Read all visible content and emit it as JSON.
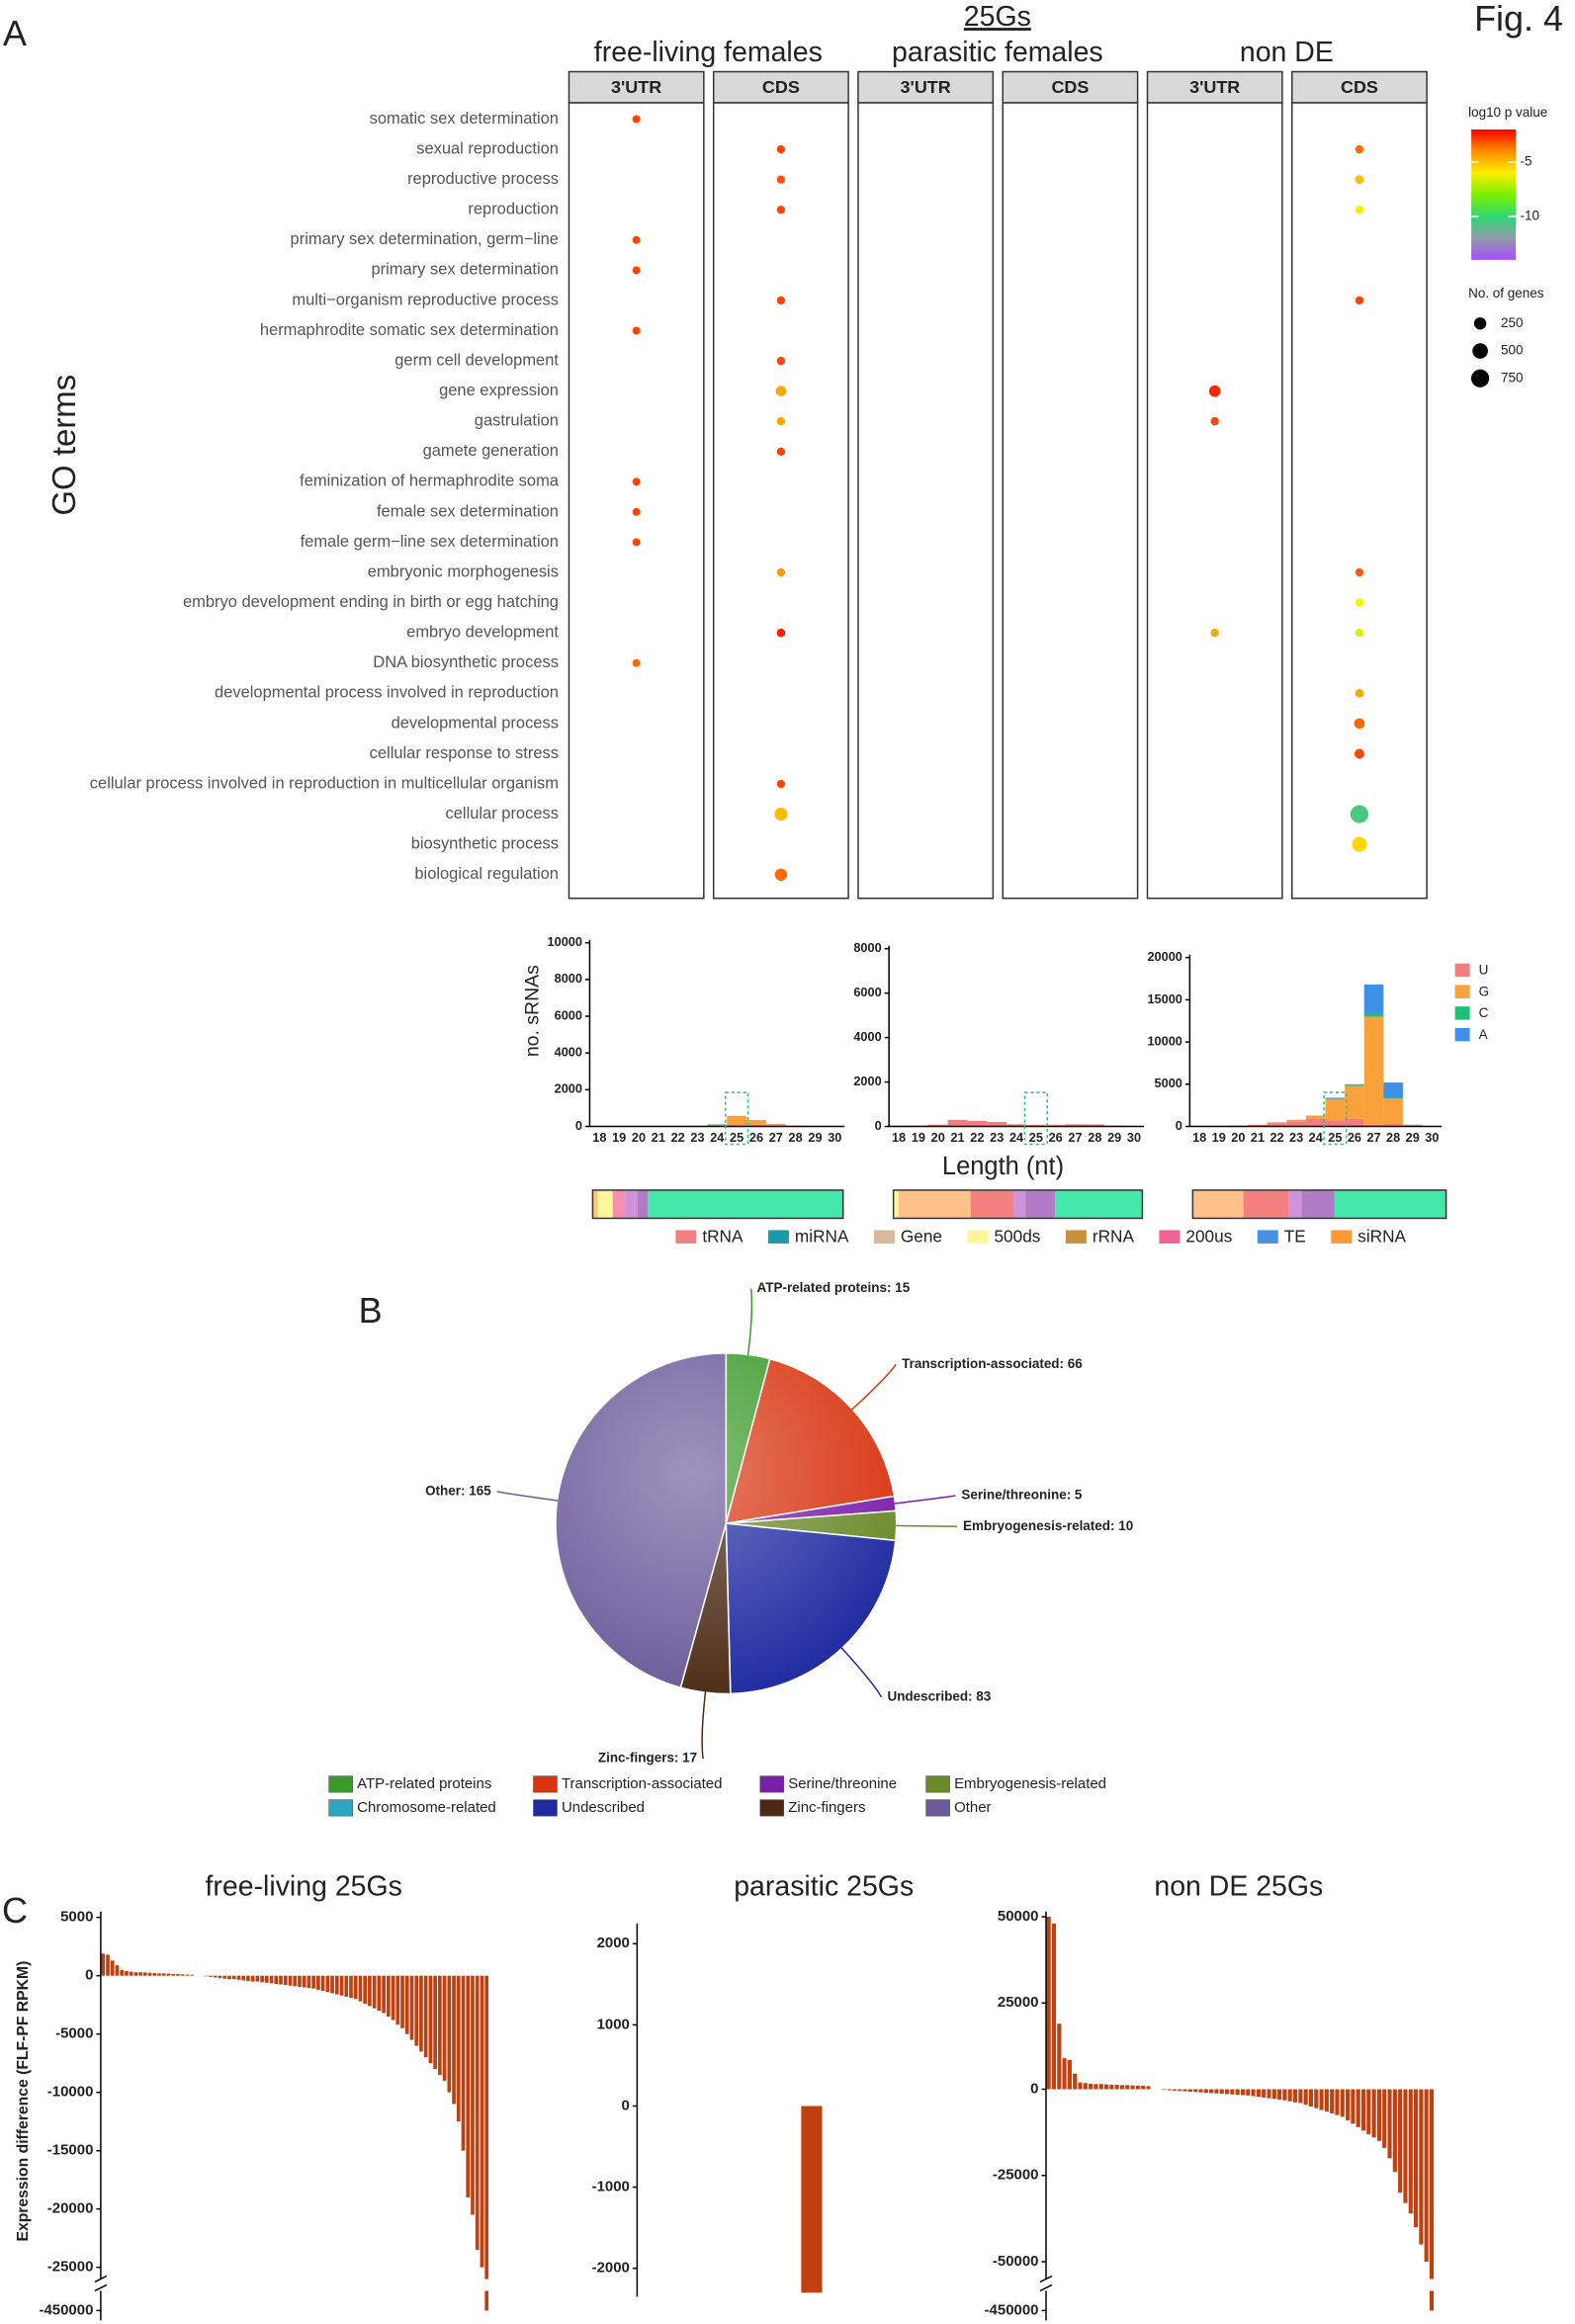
{
  "figure_label": "Fig. 4",
  "panel_labels": [
    "A",
    "B",
    "C"
  ],
  "chart_data": [
    {
      "type": "dot",
      "y_label": "GO terms",
      "group_title": "25Gs",
      "groups": [
        "free-living females",
        "parasitic females",
        "non DE"
      ],
      "facets": [
        "3'UTR",
        "CDS",
        "3'UTR",
        "CDS",
        "3'UTR",
        "CDS"
      ],
      "terms": [
        "somatic sex determination",
        "sexual reproduction",
        "reproductive process",
        "reproduction",
        "primary sex determination, germ−line",
        "primary sex determination",
        "multi−organism reproductive process",
        "hermaphrodite somatic sex determination",
        "germ cell development",
        "gene expression",
        "gastrulation",
        "gamete generation",
        "feminization of hermaphrodite soma",
        "female sex determination",
        "female germ−line sex determination",
        "embryonic morphogenesis",
        "embryo development ending in birth or egg hatching",
        "embryo development",
        "DNA biosynthetic process",
        "developmental process involved in reproduction",
        "developmental process",
        "cellular response to stress",
        "cellular process involved in reproduction in multicellular organism",
        "cellular process",
        "biosynthetic process",
        "biological regulation"
      ],
      "log10p": [
        [
          -3,
          null,
          null,
          null,
          -3,
          -3,
          null,
          -3,
          null,
          null,
          null,
          null,
          -3,
          -3,
          -3,
          null,
          null,
          null,
          -3.5,
          null,
          null,
          null,
          null,
          null,
          null,
          null
        ],
        [
          null,
          -3,
          -3.2,
          -3,
          null,
          null,
          -3,
          null,
          -3,
          -4.5,
          -4.5,
          -3,
          null,
          null,
          null,
          -4.3,
          null,
          -2.5,
          null,
          null,
          null,
          null,
          -3,
          -5,
          null,
          -3.5
        ],
        [
          null,
          null,
          null,
          null,
          null,
          null,
          null,
          null,
          null,
          null,
          null,
          null,
          null,
          null,
          null,
          null,
          null,
          null,
          null,
          null,
          null,
          null,
          null,
          null,
          null,
          null
        ],
        [
          null,
          null,
          null,
          null,
          null,
          null,
          null,
          null,
          null,
          null,
          null,
          null,
          null,
          null,
          null,
          null,
          null,
          null,
          null,
          null,
          null,
          null,
          null,
          null,
          null,
          null
        ],
        [
          null,
          null,
          null,
          null,
          null,
          null,
          null,
          null,
          null,
          -2.5,
          -3,
          null,
          null,
          null,
          null,
          null,
          null,
          -4.5,
          null,
          null,
          null,
          null,
          null,
          null,
          null,
          null
        ],
        [
          null,
          -3.5,
          -5,
          -6,
          null,
          null,
          -3,
          null,
          null,
          null,
          null,
          null,
          null,
          null,
          null,
          -3.3,
          -6,
          -6.5,
          null,
          -4.5,
          -3.5,
          -3,
          null,
          -10.5,
          -5.5,
          null
        ]
      ],
      "genes": [
        [
          50,
          null,
          null,
          null,
          50,
          50,
          null,
          50,
          null,
          null,
          null,
          null,
          50,
          50,
          50,
          null,
          null,
          null,
          50,
          null,
          null,
          null,
          null,
          null,
          null,
          null
        ],
        [
          null,
          60,
          60,
          60,
          null,
          null,
          60,
          null,
          60,
          150,
          60,
          60,
          null,
          null,
          null,
          60,
          null,
          70,
          null,
          null,
          null,
          null,
          60,
          300,
          null,
          250
        ],
        [
          null,
          null,
          null,
          null,
          null,
          null,
          null,
          null,
          null,
          null,
          null,
          null,
          null,
          null,
          null,
          null,
          null,
          null,
          null,
          null,
          null,
          null,
          null,
          null,
          null,
          null
        ],
        [
          null,
          null,
          null,
          null,
          null,
          null,
          null,
          null,
          null,
          null,
          null,
          null,
          null,
          null,
          null,
          null,
          null,
          null,
          null,
          null,
          null,
          null,
          null,
          null,
          null,
          null
        ],
        [
          null,
          null,
          null,
          null,
          null,
          null,
          null,
          null,
          null,
          200,
          60,
          null,
          null,
          null,
          null,
          null,
          null,
          60,
          null,
          null,
          null,
          null,
          null,
          null,
          null,
          null
        ],
        [
          null,
          60,
          80,
          70,
          null,
          null,
          60,
          null,
          null,
          null,
          null,
          null,
          null,
          null,
          null,
          60,
          60,
          60,
          null,
          70,
          150,
          120,
          null,
          750,
          450,
          null
        ]
      ],
      "color_title": "log10 p value",
      "clim": [
        -14,
        -2
      ],
      "cticks": [
        -5,
        -10
      ],
      "colors": [
        "#ff0000",
        "#ff8c00",
        "#ffee00",
        "#7cf000",
        "#2fd873",
        "#8f9ca8",
        "#a64dff"
      ],
      "size_title": "No. of genes",
      "size_ticks": [
        250,
        500,
        750
      ]
    },
    {
      "type": "stacked_bar",
      "y_label": "no. sRNAs",
      "x_label": "Length (nt)",
      "categories": [
        "18",
        "19",
        "20",
        "21",
        "22",
        "23",
        "24",
        "25",
        "26",
        "27",
        "28",
        "29",
        "30"
      ],
      "highlight_category": "25",
      "series": [
        {
          "name": "U",
          "color": "#f47c7c"
        },
        {
          "name": "G",
          "color": "#f9a23c"
        },
        {
          "name": "C",
          "color": "#1fbf7a"
        },
        {
          "name": "A",
          "color": "#3d8fe8"
        }
      ],
      "panels": [
        {
          "ylim": [
            0,
            10000
          ],
          "yticks": [
            0,
            2000,
            4000,
            6000,
            8000,
            10000
          ],
          "values": [
            [
              20,
              20,
              20,
              20,
              20,
              30,
              40,
              80,
              100,
              60,
              30,
              10,
              10
            ],
            [
              0,
              0,
              0,
              0,
              0,
              0,
              20,
              500,
              250,
              80,
              20,
              0,
              0
            ],
            [
              0,
              0,
              0,
              0,
              0,
              0,
              50,
              0,
              0,
              0,
              0,
              0,
              0
            ],
            [
              0,
              0,
              0,
              0,
              0,
              0,
              0,
              0,
              0,
              0,
              0,
              0,
              0
            ]
          ]
        },
        {
          "ylim": [
            0,
            8000
          ],
          "yticks": [
            0,
            2000,
            4000,
            6000,
            8000
          ],
          "values": [
            [
              30,
              40,
              80,
              300,
              250,
              200,
              100,
              60,
              60,
              80,
              80,
              40,
              20
            ],
            [
              0,
              0,
              0,
              0,
              0,
              0,
              0,
              20,
              20,
              30,
              20,
              0,
              0
            ],
            [
              0,
              0,
              0,
              0,
              0,
              0,
              0,
              0,
              0,
              0,
              0,
              0,
              0
            ],
            [
              0,
              0,
              0,
              0,
              0,
              0,
              0,
              0,
              0,
              0,
              0,
              0,
              0
            ]
          ]
        },
        {
          "ylim": [
            0,
            20000
          ],
          "yticks": [
            0,
            5000,
            10000,
            15000,
            20000
          ],
          "values": [
            [
              50,
              50,
              100,
              200,
              400,
              600,
              900,
              700,
              900,
              200,
              300,
              50,
              20
            ],
            [
              0,
              0,
              0,
              0,
              100,
              200,
              400,
              2500,
              3900,
              12800,
              3000,
              100,
              0
            ],
            [
              0,
              0,
              0,
              0,
              0,
              0,
              0,
              100,
              100,
              300,
              100,
              0,
              0
            ],
            [
              0,
              0,
              0,
              0,
              0,
              0,
              0,
              100,
              100,
              3500,
              1800,
              50,
              0
            ]
          ]
        }
      ],
      "composition": {
        "legend": [
          {
            "name": "tRNA",
            "color": "#f08080"
          },
          {
            "name": "miRNA",
            "color": "#1b9aaa"
          },
          {
            "name": "Gene",
            "color": "#d9b99b"
          },
          {
            "name": "500ds",
            "color": "#fff59d"
          },
          {
            "name": "rRNA",
            "color": "#c8903c"
          },
          {
            "name": "200us",
            "color": "#f06292"
          },
          {
            "name": "TE",
            "color": "#4a90e2"
          },
          {
            "name": "siRNA",
            "color": "#ff9933"
          }
        ],
        "bars": [
          [
            {
              "color": "#ffc878",
              "value": 2
            },
            {
              "color": "#fff59d",
              "value": 6
            },
            {
              "color": "#f48fb1",
              "value": 5
            },
            {
              "color": "#ce93d8",
              "value": 5
            },
            {
              "color": "#b07cc6",
              "value": 4
            },
            {
              "color": "#44e8a8",
              "value": 78
            }
          ],
          [
            {
              "color": "#fff59d",
              "value": 2
            },
            {
              "color": "#ffc08a",
              "value": 29
            },
            {
              "color": "#f48080",
              "value": 17
            },
            {
              "color": "#ce93d8",
              "value": 5
            },
            {
              "color": "#b07cc6",
              "value": 12
            },
            {
              "color": "#44e8a8",
              "value": 35
            }
          ],
          [
            {
              "color": "#ffc08a",
              "value": 20
            },
            {
              "color": "#f48080",
              "value": 18
            },
            {
              "color": "#ce93d8",
              "value": 5
            },
            {
              "color": "#b07cc6",
              "value": 13
            },
            {
              "color": "#44e8a8",
              "value": 44
            }
          ]
        ]
      }
    },
    {
      "type": "pie",
      "categories": [
        "ATP-related proteins",
        "Transcription-associated",
        "Serine/threonine",
        "Embryogenesis-related",
        "Chromosome-related",
        "Undescribed",
        "Zinc-fingers",
        "Other"
      ],
      "values": [
        15,
        66,
        5,
        10,
        0,
        83,
        17,
        165
      ],
      "value_labels": [
        "ATP-related proteins: 15",
        "Transcription-associated: 66",
        "Serine/threonine: 5",
        "Embryogenesis-related: 10",
        null,
        "Undescribed: 83",
        "Zinc-fingers: 17",
        "Other: 165"
      ],
      "colors": [
        "#3a9a2a",
        "#d8340f",
        "#7a1fa8",
        "#6b8a2a",
        "#2aa6c0",
        "#1f2aa0",
        "#4a2a14",
        "#6a5a9a"
      ]
    },
    {
      "type": "bar",
      "title": "free-living 25Gs",
      "y_label": "Expression difference (FLF-PF RPKM)",
      "color": "#c0400f",
      "ylim": [
        -455000,
        5500
      ],
      "ybreak": [
        -440000,
        -26000
      ],
      "yticks": [
        5000,
        0,
        -5000,
        -10000,
        -15000,
        -20000,
        -25000,
        -450000
      ],
      "values": [
        1900,
        1800,
        1300,
        900,
        500,
        400,
        350,
        300,
        300,
        280,
        250,
        230,
        200,
        200,
        180,
        150,
        150,
        120,
        100,
        80,
        0,
        0,
        -50,
        -100,
        -150,
        -200,
        -250,
        -300,
        -300,
        -350,
        -400,
        -450,
        -500,
        -500,
        -550,
        -600,
        -650,
        -700,
        -750,
        -800,
        -850,
        -900,
        -950,
        -1000,
        -1050,
        -1100,
        -1200,
        -1300,
        -1400,
        -1500,
        -1600,
        -1700,
        -1800,
        -1900,
        -2000,
        -2200,
        -2400,
        -2600,
        -2800,
        -3000,
        -3200,
        -3500,
        -3800,
        -4200,
        -4500,
        -5000,
        -5500,
        -6000,
        -6500,
        -7000,
        -7500,
        -8000,
        -8500,
        -9000,
        -10000,
        -11000,
        -12500,
        -15000,
        -19000,
        -20500,
        -23500,
        -25000,
        -450000
      ]
    },
    {
      "type": "bar",
      "title": "parasitic 25Gs",
      "color": "#c0400f",
      "ylim": [
        -2350,
        2250
      ],
      "yticks": [
        2000,
        1000,
        0,
        -1000,
        -2000
      ],
      "values": [
        0,
        0,
        0,
        0,
        0,
        0,
        -2300,
        0
      ]
    },
    {
      "type": "bar",
      "title": "non DE 25Gs",
      "color": "#c0400f",
      "ylim": [
        -455000,
        51500
      ],
      "ybreak": [
        -440000,
        -55000
      ],
      "yticks": [
        50000,
        25000,
        0,
        -25000,
        -50000,
        -450000
      ],
      "values": [
        50000,
        48000,
        19000,
        9000,
        8500,
        4500,
        2000,
        1800,
        1600,
        1500,
        1500,
        1400,
        1300,
        1300,
        1200,
        1200,
        1100,
        1000,
        1000,
        900,
        0,
        0,
        -200,
        -300,
        -400,
        -500,
        -600,
        -700,
        -800,
        -900,
        -1000,
        -1100,
        -1200,
        -1300,
        -1400,
        -1500,
        -1600,
        -1700,
        -1800,
        -2000,
        -2200,
        -2400,
        -2600,
        -2800,
        -3000,
        -3200,
        -3500,
        -3800,
        -4000,
        -4500,
        -5000,
        -5500,
        -6000,
        -6500,
        -7000,
        -7500,
        -8000,
        -9000,
        -10000,
        -11000,
        -12000,
        -13000,
        -14000,
        -15000,
        -17000,
        -20000,
        -24000,
        -30000,
        -33000,
        -36000,
        -40000,
        -45000,
        -50000,
        -450000
      ]
    }
  ]
}
